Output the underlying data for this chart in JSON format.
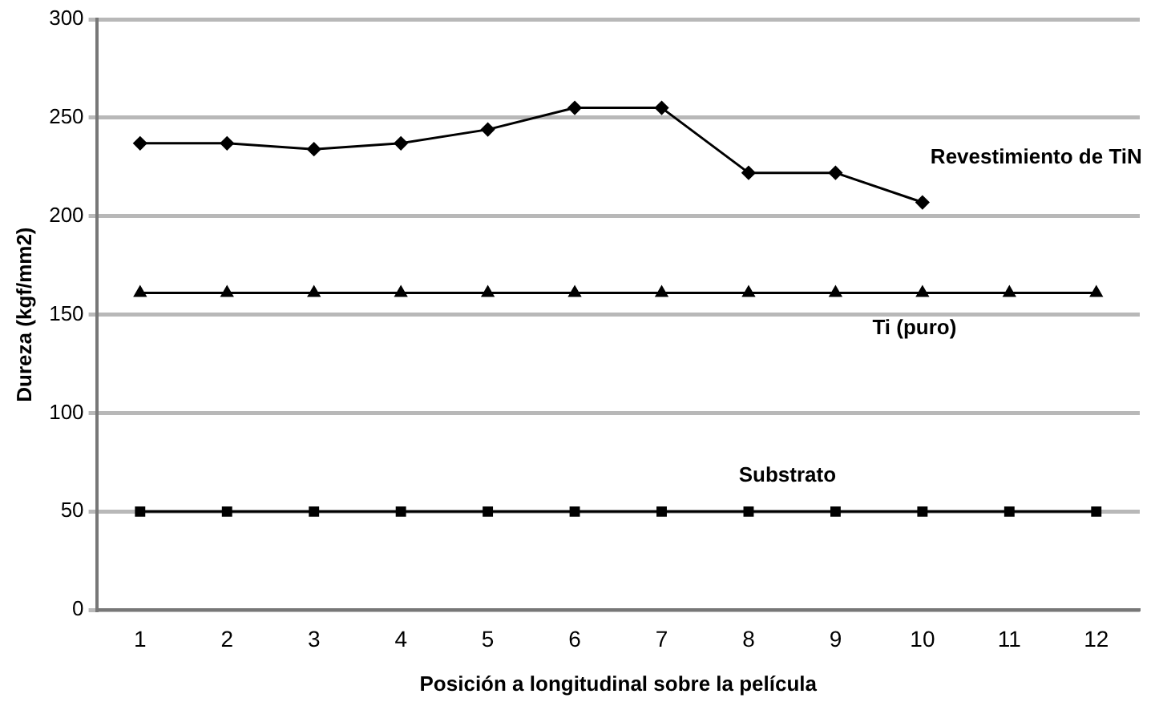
{
  "chart_data": {
    "type": "line",
    "xlabel": "Posición a longitudinal sobre la película",
    "ylabel": "Dureza (kgf/mm2)",
    "categories": [
      "1",
      "2",
      "3",
      "4",
      "5",
      "6",
      "7",
      "8",
      "9",
      "10",
      "11",
      "12"
    ],
    "series": [
      {
        "name": "Revestimiento de TiN",
        "color": "#000000",
        "marker": "diamond",
        "values": [
          237,
          237,
          234,
          237,
          244,
          255,
          255,
          222,
          222,
          207,
          null,
          null
        ]
      },
      {
        "name": "Ti (puro)",
        "color": "#000000",
        "marker": "triangle",
        "values": [
          161,
          161,
          161,
          161,
          161,
          161,
          161,
          161,
          161,
          161,
          161,
          161
        ]
      },
      {
        "name": "Substrato",
        "color": "#000000",
        "marker": "square",
        "values": [
          50,
          50,
          50,
          50,
          50,
          50,
          50,
          50,
          50,
          50,
          50,
          50
        ]
      }
    ],
    "ylim": [
      0,
      300
    ],
    "yticks": [
      0,
      50,
      100,
      150,
      200,
      250,
      300
    ],
    "grid": "y",
    "legend": false,
    "line_style": "solid"
  }
}
